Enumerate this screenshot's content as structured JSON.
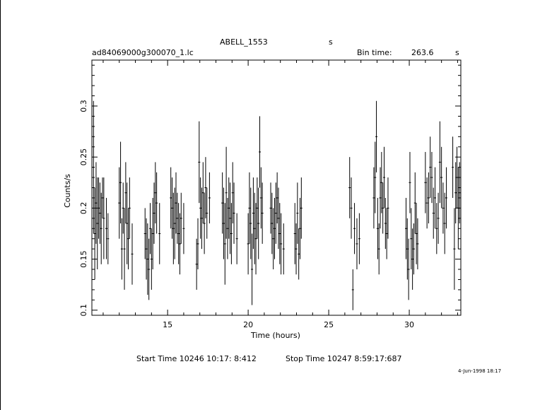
{
  "header": {
    "object": "ABELL_1553",
    "object_unit": "s",
    "filename": "ad84069000g300070_1.lc",
    "bin_label": "Bin time:",
    "bin_value": "263.6",
    "bin_unit": "s"
  },
  "footer": {
    "start_time": "Start Time 10246 10:17: 8:412",
    "stop_time": "Stop Time 10247  8:59:17:687",
    "date_stamp": "4-Jun-1998 18:17"
  },
  "chart_data": {
    "type": "scatter",
    "title": "",
    "xlabel": "Time (hours)",
    "ylabel": "Counts/s",
    "xlim": [
      10.3,
      33.2
    ],
    "ylim": [
      0.095,
      0.345
    ],
    "x_ticks": [
      15,
      20,
      25,
      30
    ],
    "y_ticks": [
      0.1,
      0.15,
      0.2,
      0.25,
      0.3
    ],
    "x_tick_labels": [
      "15",
      "20",
      "25",
      "30"
    ],
    "y_tick_labels": [
      "0.1",
      "0.15",
      "0.2",
      "0.25",
      "0.3"
    ],
    "grid": false,
    "error_bars": true,
    "points": [
      {
        "x": 10.4,
        "y": 0.24,
        "e": 0.065
      },
      {
        "x": 10.48,
        "y": 0.175,
        "e": 0.045
      },
      {
        "x": 10.56,
        "y": 0.205,
        "e": 0.04
      },
      {
        "x": 10.64,
        "y": 0.185,
        "e": 0.045
      },
      {
        "x": 10.72,
        "y": 0.2,
        "e": 0.03
      },
      {
        "x": 10.8,
        "y": 0.195,
        "e": 0.03
      },
      {
        "x": 10.88,
        "y": 0.18,
        "e": 0.035
      },
      {
        "x": 10.96,
        "y": 0.21,
        "e": 0.02
      },
      {
        "x": 11.04,
        "y": 0.19,
        "e": 0.04
      },
      {
        "x": 11.2,
        "y": 0.18,
        "e": 0.03
      },
      {
        "x": 11.3,
        "y": 0.17,
        "e": 0.025
      },
      {
        "x": 12.0,
        "y": 0.205,
        "e": 0.035
      },
      {
        "x": 12.08,
        "y": 0.225,
        "e": 0.04
      },
      {
        "x": 12.16,
        "y": 0.16,
        "e": 0.03
      },
      {
        "x": 12.24,
        "y": 0.2,
        "e": 0.025
      },
      {
        "x": 12.32,
        "y": 0.16,
        "e": 0.04
      },
      {
        "x": 12.4,
        "y": 0.215,
        "e": 0.03
      },
      {
        "x": 12.48,
        "y": 0.185,
        "e": 0.04
      },
      {
        "x": 12.56,
        "y": 0.17,
        "e": 0.03
      },
      {
        "x": 12.64,
        "y": 0.2,
        "e": 0.03
      },
      {
        "x": 12.8,
        "y": 0.155,
        "e": 0.03
      },
      {
        "x": 13.6,
        "y": 0.175,
        "e": 0.025
      },
      {
        "x": 13.68,
        "y": 0.16,
        "e": 0.03
      },
      {
        "x": 13.76,
        "y": 0.15,
        "e": 0.035
      },
      {
        "x": 13.84,
        "y": 0.14,
        "e": 0.03
      },
      {
        "x": 13.92,
        "y": 0.18,
        "e": 0.025
      },
      {
        "x": 14.0,
        "y": 0.15,
        "e": 0.03
      },
      {
        "x": 14.08,
        "y": 0.175,
        "e": 0.035
      },
      {
        "x": 14.16,
        "y": 0.195,
        "e": 0.03
      },
      {
        "x": 14.24,
        "y": 0.215,
        "e": 0.03
      },
      {
        "x": 14.32,
        "y": 0.205,
        "e": 0.03
      },
      {
        "x": 14.5,
        "y": 0.175,
        "e": 0.03
      },
      {
        "x": 15.2,
        "y": 0.21,
        "e": 0.03
      },
      {
        "x": 15.28,
        "y": 0.2,
        "e": 0.03
      },
      {
        "x": 15.36,
        "y": 0.18,
        "e": 0.035
      },
      {
        "x": 15.44,
        "y": 0.185,
        "e": 0.035
      },
      {
        "x": 15.52,
        "y": 0.205,
        "e": 0.03
      },
      {
        "x": 15.6,
        "y": 0.19,
        "e": 0.025
      },
      {
        "x": 15.68,
        "y": 0.175,
        "e": 0.03
      },
      {
        "x": 15.76,
        "y": 0.165,
        "e": 0.03
      },
      {
        "x": 15.84,
        "y": 0.19,
        "e": 0.025
      },
      {
        "x": 16.0,
        "y": 0.18,
        "e": 0.025
      },
      {
        "x": 16.8,
        "y": 0.145,
        "e": 0.025
      },
      {
        "x": 16.88,
        "y": 0.165,
        "e": 0.025
      },
      {
        "x": 16.96,
        "y": 0.245,
        "e": 0.04
      },
      {
        "x": 17.04,
        "y": 0.2,
        "e": 0.03
      },
      {
        "x": 17.12,
        "y": 0.19,
        "e": 0.03
      },
      {
        "x": 17.2,
        "y": 0.215,
        "e": 0.03
      },
      {
        "x": 17.28,
        "y": 0.185,
        "e": 0.03
      },
      {
        "x": 17.36,
        "y": 0.22,
        "e": 0.03
      },
      {
        "x": 17.44,
        "y": 0.195,
        "e": 0.025
      },
      {
        "x": 17.6,
        "y": 0.21,
        "e": 0.025
      },
      {
        "x": 18.4,
        "y": 0.205,
        "e": 0.03
      },
      {
        "x": 18.48,
        "y": 0.185,
        "e": 0.035
      },
      {
        "x": 18.56,
        "y": 0.165,
        "e": 0.04
      },
      {
        "x": 18.64,
        "y": 0.215,
        "e": 0.045
      },
      {
        "x": 18.72,
        "y": 0.18,
        "e": 0.03
      },
      {
        "x": 18.8,
        "y": 0.2,
        "e": 0.03
      },
      {
        "x": 18.88,
        "y": 0.19,
        "e": 0.035
      },
      {
        "x": 18.96,
        "y": 0.175,
        "e": 0.03
      },
      {
        "x": 19.04,
        "y": 0.215,
        "e": 0.03
      },
      {
        "x": 19.12,
        "y": 0.195,
        "e": 0.03
      },
      {
        "x": 19.3,
        "y": 0.17,
        "e": 0.025
      },
      {
        "x": 20.0,
        "y": 0.165,
        "e": 0.03
      },
      {
        "x": 20.08,
        "y": 0.2,
        "e": 0.035
      },
      {
        "x": 20.16,
        "y": 0.185,
        "e": 0.035
      },
      {
        "x": 20.24,
        "y": 0.14,
        "e": 0.035
      },
      {
        "x": 20.32,
        "y": 0.195,
        "e": 0.035
      },
      {
        "x": 20.4,
        "y": 0.18,
        "e": 0.035
      },
      {
        "x": 20.48,
        "y": 0.17,
        "e": 0.035
      },
      {
        "x": 20.56,
        "y": 0.2,
        "e": 0.03
      },
      {
        "x": 20.64,
        "y": 0.185,
        "e": 0.035
      },
      {
        "x": 20.72,
        "y": 0.255,
        "e": 0.035
      },
      {
        "x": 20.8,
        "y": 0.21,
        "e": 0.03
      },
      {
        "x": 20.88,
        "y": 0.195,
        "e": 0.03
      },
      {
        "x": 21.4,
        "y": 0.2,
        "e": 0.025
      },
      {
        "x": 21.48,
        "y": 0.185,
        "e": 0.03
      },
      {
        "x": 21.56,
        "y": 0.17,
        "e": 0.03
      },
      {
        "x": 21.64,
        "y": 0.18,
        "e": 0.03
      },
      {
        "x": 21.72,
        "y": 0.195,
        "e": 0.03
      },
      {
        "x": 21.8,
        "y": 0.21,
        "e": 0.025
      },
      {
        "x": 21.88,
        "y": 0.19,
        "e": 0.03
      },
      {
        "x": 21.96,
        "y": 0.175,
        "e": 0.03
      },
      {
        "x": 22.04,
        "y": 0.165,
        "e": 0.03
      },
      {
        "x": 22.2,
        "y": 0.16,
        "e": 0.025
      },
      {
        "x": 22.9,
        "y": 0.175,
        "e": 0.03
      },
      {
        "x": 22.98,
        "y": 0.16,
        "e": 0.025
      },
      {
        "x": 23.06,
        "y": 0.195,
        "e": 0.03
      },
      {
        "x": 23.14,
        "y": 0.155,
        "e": 0.025
      },
      {
        "x": 23.22,
        "y": 0.18,
        "e": 0.03
      },
      {
        "x": 23.3,
        "y": 0.2,
        "e": 0.03
      },
      {
        "x": 26.3,
        "y": 0.22,
        "e": 0.03
      },
      {
        "x": 26.4,
        "y": 0.2,
        "e": 0.03
      },
      {
        "x": 26.5,
        "y": 0.12,
        "e": 0.02
      },
      {
        "x": 26.6,
        "y": 0.18,
        "e": 0.025
      },
      {
        "x": 26.75,
        "y": 0.165,
        "e": 0.025
      },
      {
        "x": 26.9,
        "y": 0.17,
        "e": 0.025
      },
      {
        "x": 27.8,
        "y": 0.21,
        "e": 0.03
      },
      {
        "x": 27.88,
        "y": 0.23,
        "e": 0.035
      },
      {
        "x": 27.96,
        "y": 0.27,
        "e": 0.035
      },
      {
        "x": 28.04,
        "y": 0.18,
        "e": 0.03
      },
      {
        "x": 28.12,
        "y": 0.16,
        "e": 0.025
      },
      {
        "x": 28.2,
        "y": 0.21,
        "e": 0.03
      },
      {
        "x": 28.28,
        "y": 0.225,
        "e": 0.03
      },
      {
        "x": 28.36,
        "y": 0.2,
        "e": 0.025
      },
      {
        "x": 28.44,
        "y": 0.23,
        "e": 0.03
      },
      {
        "x": 28.52,
        "y": 0.185,
        "e": 0.025
      },
      {
        "x": 28.6,
        "y": 0.175,
        "e": 0.025
      },
      {
        "x": 28.68,
        "y": 0.2,
        "e": 0.03
      },
      {
        "x": 29.8,
        "y": 0.18,
        "e": 0.03
      },
      {
        "x": 29.88,
        "y": 0.16,
        "e": 0.03
      },
      {
        "x": 29.96,
        "y": 0.14,
        "e": 0.03
      },
      {
        "x": 30.04,
        "y": 0.225,
        "e": 0.03
      },
      {
        "x": 30.12,
        "y": 0.17,
        "e": 0.03
      },
      {
        "x": 30.2,
        "y": 0.15,
        "e": 0.03
      },
      {
        "x": 30.28,
        "y": 0.16,
        "e": 0.025
      },
      {
        "x": 30.36,
        "y": 0.205,
        "e": 0.03
      },
      {
        "x": 30.44,
        "y": 0.175,
        "e": 0.03
      },
      {
        "x": 30.52,
        "y": 0.165,
        "e": 0.025
      },
      {
        "x": 31.0,
        "y": 0.225,
        "e": 0.03
      },
      {
        "x": 31.1,
        "y": 0.205,
        "e": 0.025
      },
      {
        "x": 31.2,
        "y": 0.21,
        "e": 0.025
      },
      {
        "x": 31.3,
        "y": 0.24,
        "e": 0.03
      },
      {
        "x": 31.4,
        "y": 0.23,
        "e": 0.025
      },
      {
        "x": 31.5,
        "y": 0.195,
        "e": 0.025
      },
      {
        "x": 31.6,
        "y": 0.21,
        "e": 0.03
      },
      {
        "x": 31.7,
        "y": 0.18,
        "e": 0.025
      },
      {
        "x": 31.8,
        "y": 0.19,
        "e": 0.025
      },
      {
        "x": 31.9,
        "y": 0.245,
        "e": 0.04
      },
      {
        "x": 32.0,
        "y": 0.23,
        "e": 0.03
      },
      {
        "x": 32.1,
        "y": 0.2,
        "e": 0.025
      },
      {
        "x": 32.2,
        "y": 0.185,
        "e": 0.03
      },
      {
        "x": 32.3,
        "y": 0.21,
        "e": 0.03
      },
      {
        "x": 32.7,
        "y": 0.24,
        "e": 0.03
      },
      {
        "x": 32.8,
        "y": 0.16,
        "e": 0.04
      },
      {
        "x": 32.88,
        "y": 0.215,
        "e": 0.03
      },
      {
        "x": 32.96,
        "y": 0.23,
        "e": 0.03
      },
      {
        "x": 33.04,
        "y": 0.2,
        "e": 0.04
      },
      {
        "x": 33.12,
        "y": 0.215,
        "e": 0.03
      }
    ]
  }
}
